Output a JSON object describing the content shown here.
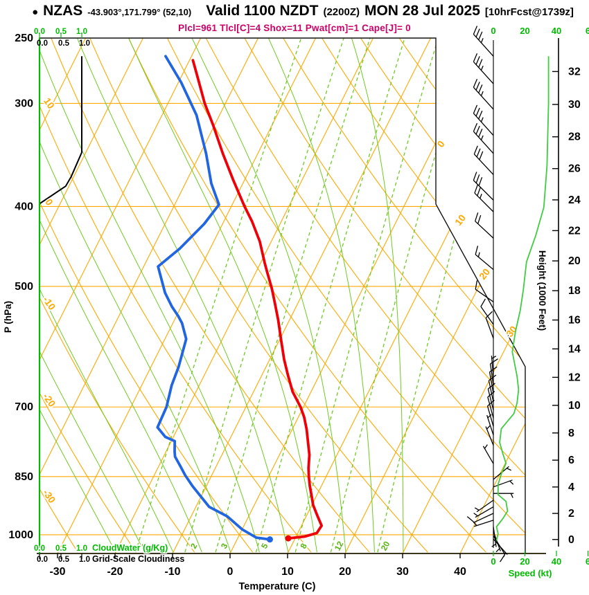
{
  "header": {
    "bullet": "●",
    "station": "NZAS",
    "coords": "-43.903°,171.799° (52,10)",
    "valid_prefix": "Valid 1100 NZDT",
    "valid_zulu": "(2200Z)",
    "valid_date": "MON 28 Jul 2025",
    "fcst_tag": "[10hrFcst@1739z]",
    "indices": "Plcl=961 Tlcl[C]=4 Shox=11 Pwat[cm]=1 Cape[J]= 0"
  },
  "colors": {
    "isoline_orange": "#FFA800",
    "moist_green": "#6CCB1E",
    "bright_green": "#00BB00",
    "temperature_red": "#EE0008",
    "dewpoint_blue": "#2166E0",
    "indices_magenta": "#CC0066",
    "line_black": "#111111"
  },
  "chart_data": {
    "type": "line",
    "variant": "skew-t-log-p-sounding",
    "axes": {
      "temperature": {
        "label": "Temperature (C)",
        "ticks": [
          -30,
          -20,
          -10,
          0,
          10,
          20,
          30,
          40
        ],
        "range": [
          -35,
          45
        ]
      },
      "pressure": {
        "label": "P (hPa)",
        "ticks": [
          250,
          300,
          400,
          500,
          700,
          850,
          1000
        ],
        "scale": "log"
      },
      "height": {
        "label": "Height (1000 Feet)",
        "ticks": [
          0,
          2,
          4,
          6,
          8,
          10,
          12,
          14,
          16,
          18,
          20,
          22,
          24,
          26,
          28,
          30,
          32
        ]
      },
      "speed": {
        "label": "Speed (kt)",
        "tick_labels": [
          "0",
          "20",
          "40",
          "6"
        ]
      },
      "cloudwater_scale": {
        "label": "CloudWater (g/Kg)",
        "ticks": [
          "0.0",
          "0.5",
          "1.0"
        ]
      },
      "cloudiness_scale": {
        "label": "Grid-Scale Cloudiness",
        "ticks": [
          "0.0",
          "0.5",
          "1.0"
        ]
      }
    },
    "grid": {
      "isotherm_step_c": 10,
      "isotherm_labels_right": [
        "0",
        "10",
        "20",
        "30"
      ],
      "dry_adiabat_labels_left": [
        "10",
        "0",
        "-10",
        "-20",
        "-30"
      ],
      "mixing_ratio_lines_gkg": [
        1,
        2,
        3,
        5,
        8,
        12,
        20
      ],
      "moist_adiabats_c": [
        -20,
        -15,
        -10,
        -5,
        0,
        5,
        10,
        15,
        20,
        25,
        30
      ]
    },
    "series": {
      "temperature_c": [
        [
          266,
          -49.4
        ],
        [
          279,
          -47.1
        ],
        [
          300,
          -43.6
        ],
        [
          319,
          -40.2
        ],
        [
          345,
          -36.1
        ],
        [
          372,
          -31.9
        ],
        [
          400,
          -27.7
        ],
        [
          417,
          -25.1
        ],
        [
          441,
          -22.0
        ],
        [
          468,
          -19.3
        ],
        [
          480,
          -18.1
        ],
        [
          503,
          -15.8
        ],
        [
          524,
          -14.0
        ],
        [
          550,
          -11.9
        ],
        [
          578,
          -9.9
        ],
        [
          613,
          -7.5
        ],
        [
          640,
          -5.5
        ],
        [
          671,
          -3.2
        ],
        [
          700,
          -0.5
        ],
        [
          720,
          1.0
        ],
        [
          745,
          2.5
        ],
        [
          775,
          4.0
        ],
        [
          800,
          5.2
        ],
        [
          830,
          6.2
        ],
        [
          850,
          7.0
        ],
        [
          873,
          8.0
        ],
        [
          900,
          9.3
        ],
        [
          920,
          10.2
        ],
        [
          950,
          12.0
        ],
        [
          975,
          13.5
        ],
        [
          995,
          13.3
        ],
        [
          1005,
          11.5
        ],
        [
          1010,
          8.8
        ]
      ],
      "dewpoint_c": [
        [
          263,
          -54.5
        ],
        [
          283,
          -49.5
        ],
        [
          310,
          -44.0
        ],
        [
          345,
          -39.0
        ],
        [
          375,
          -35.5
        ],
        [
          398,
          -32.3
        ],
        [
          420,
          -33.2
        ],
        [
          450,
          -35.3
        ],
        [
          473,
          -37.5
        ],
        [
          509,
          -34.0
        ],
        [
          529,
          -31.6
        ],
        [
          543,
          -29.7
        ],
        [
          554,
          -28.4
        ],
        [
          579,
          -26.3
        ],
        [
          626,
          -25.2
        ],
        [
          659,
          -24.8
        ],
        [
          700,
          -23.8
        ],
        [
          741,
          -23.6
        ],
        [
          761,
          -21.4
        ],
        [
          770,
          -19.4
        ],
        [
          793,
          -18.5
        ],
        [
          804,
          -18.0
        ],
        [
          825,
          -16.3
        ],
        [
          847,
          -14.6
        ],
        [
          873,
          -12.4
        ],
        [
          898,
          -10.1
        ],
        [
          925,
          -7.7
        ],
        [
          950,
          -3.7
        ],
        [
          985,
          0.0
        ],
        [
          1008,
          3.2
        ],
        [
          1013,
          5.7
        ]
      ],
      "grid_scale_cloudiness": [
        [
          263,
          1.0
        ],
        [
          344,
          1.0
        ],
        [
          368,
          0.75
        ],
        [
          378,
          0.62
        ],
        [
          397,
          0.0
        ]
      ],
      "cloud_water_gkg": [
        [
          250,
          0.0
        ],
        [
          1013,
          0.0
        ]
      ],
      "wind_speed_kt": [
        [
          263,
          35
        ],
        [
          300,
          35
        ],
        [
          357,
          34
        ],
        [
          401,
          32
        ],
        [
          433,
          27
        ],
        [
          467,
          21
        ],
        [
          505,
          19
        ],
        [
          535,
          17
        ],
        [
          567,
          14
        ],
        [
          600,
          12
        ],
        [
          642,
          15
        ],
        [
          667,
          16
        ],
        [
          693,
          15
        ],
        [
          713,
          13
        ],
        [
          744,
          5
        ],
        [
          773,
          4
        ],
        [
          797,
          6
        ],
        [
          819,
          8
        ],
        [
          844,
          5
        ],
        [
          869,
          3
        ],
        [
          894,
          3
        ],
        [
          911,
          8
        ],
        [
          936,
          9
        ],
        [
          956,
          6
        ],
        [
          978,
          2
        ],
        [
          997,
          3
        ],
        [
          1016,
          2
        ]
      ],
      "wind_barbs": [
        [
          263,
          -42,
          35
        ],
        [
          284,
          -42,
          35
        ],
        [
          305,
          -42,
          35
        ],
        [
          328,
          -42,
          35
        ],
        [
          345,
          -42,
          35
        ],
        [
          366,
          -43,
          30
        ],
        [
          393,
          -45,
          30
        ],
        [
          406,
          -45,
          25
        ],
        [
          437,
          -47,
          20
        ],
        [
          477,
          -50,
          15
        ],
        [
          522,
          -55,
          10
        ],
        [
          556,
          -35,
          10
        ],
        [
          578,
          -20,
          10
        ],
        [
          643,
          -5,
          7
        ],
        [
          659,
          -8,
          10
        ],
        [
          674,
          -10,
          10
        ],
        [
          690,
          -12,
          10
        ],
        [
          706,
          -14,
          10
        ],
        [
          722,
          -15,
          10
        ],
        [
          739,
          -16,
          8
        ],
        [
          757,
          -18,
          7
        ],
        [
          779,
          -22,
          5
        ],
        [
          820,
          -30,
          5
        ],
        [
          857,
          50,
          5
        ],
        [
          875,
          70,
          5
        ],
        [
          891,
          90,
          5
        ],
        [
          908,
          -125,
          5
        ],
        [
          925,
          -120,
          7
        ],
        [
          942,
          -115,
          8
        ],
        [
          960,
          -108,
          5
        ],
        [
          978,
          172,
          5
        ],
        [
          991,
          160,
          7
        ],
        [
          1003,
          148,
          10
        ],
        [
          1012,
          138,
          7
        ]
      ]
    }
  }
}
